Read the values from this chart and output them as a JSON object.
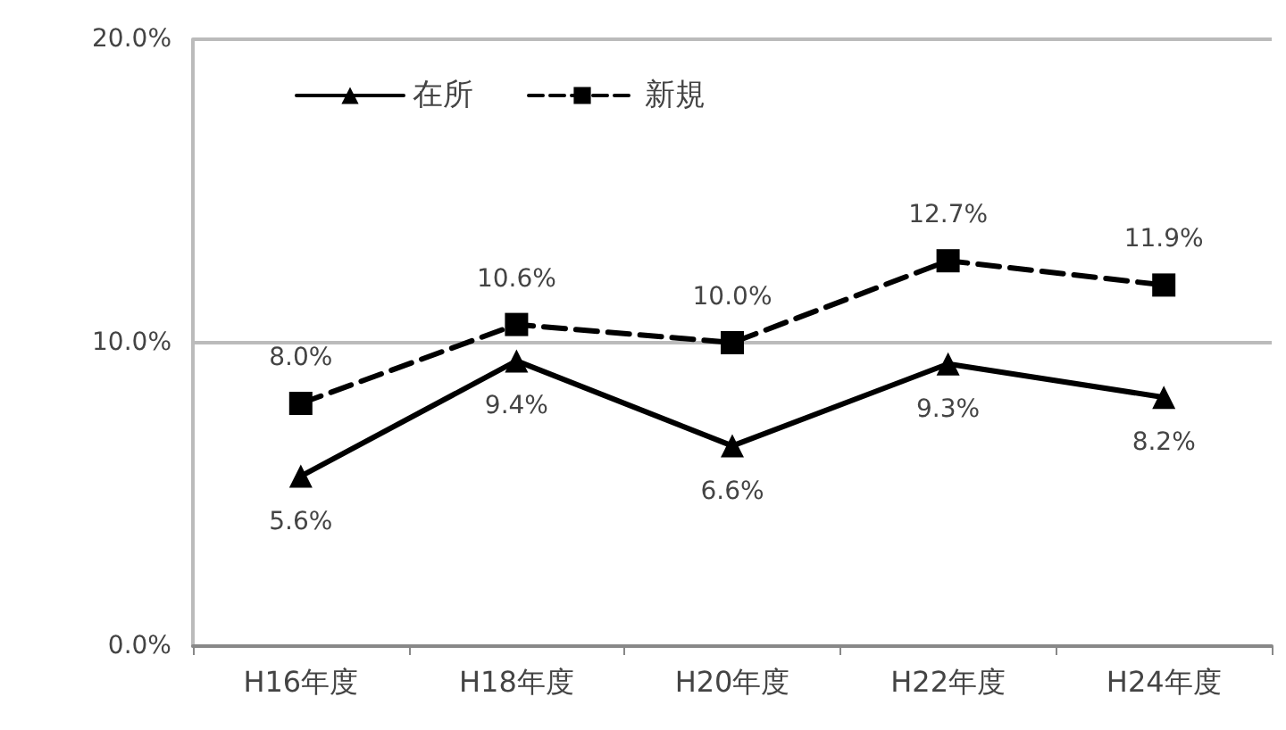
{
  "chart_data": {
    "type": "line",
    "categories": [
      "H16年度",
      "H18年度",
      "H20年度",
      "H22年度",
      "H24年度"
    ],
    "series": [
      {
        "name": "在所",
        "color": "#000000",
        "marker": "triangle",
        "line_style": "solid",
        "values": [
          5.6,
          9.4,
          6.6,
          9.3,
          8.2
        ],
        "value_labels": [
          "5.6%",
          "9.4%",
          "6.6%",
          "9.3%",
          "8.2%"
        ]
      },
      {
        "name": "新規",
        "color": "#000000",
        "marker": "square",
        "line_style": "dashed",
        "values": [
          8.0,
          10.6,
          10.0,
          12.7,
          11.9
        ],
        "value_labels": [
          "8.0%",
          "10.6%",
          "10.0%",
          "12.7%",
          "11.9%"
        ]
      }
    ],
    "ylim": [
      0,
      20
    ],
    "yticks": [
      {
        "value": 0,
        "label": "0.0%"
      },
      {
        "value": 10,
        "label": "10.0%"
      },
      {
        "value": 20,
        "label": "20.0%"
      }
    ],
    "grid": "y",
    "legend": "top left"
  }
}
